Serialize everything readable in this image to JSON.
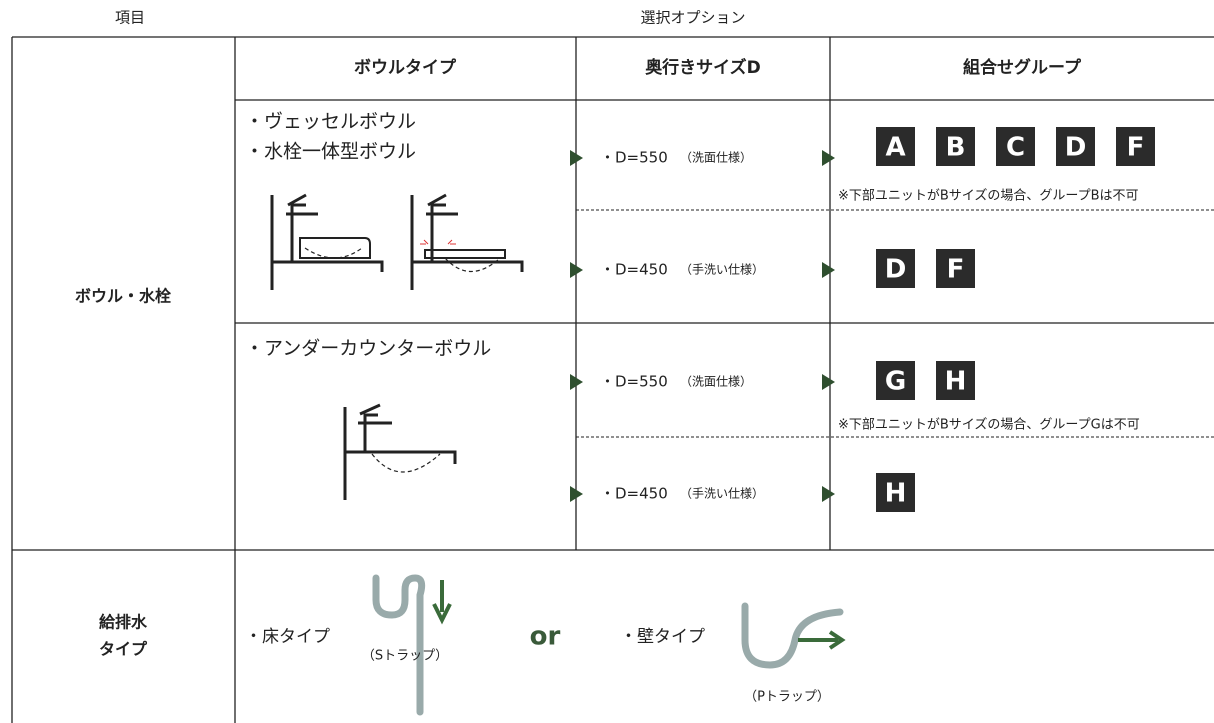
{
  "header": {
    "item": "項目",
    "options": "選択オプション"
  },
  "table": {
    "columns": [
      "ボウルタイプ",
      "奥行きサイズD",
      "組合せグループ"
    ],
    "bowl_row": {
      "label": "ボウル・水栓",
      "sections": [
        {
          "bowl_types": [
            "・ヴェッセルボウル",
            "・水栓一体型ボウル"
          ],
          "options": [
            {
              "depth": "・D=550",
              "use": "（洗面仕様）",
              "groups": [
                "A",
                "B",
                "C",
                "D",
                "F"
              ],
              "note": "※下部ユニットがBサイズの場合、グループBは不可"
            },
            {
              "depth": "・D=450",
              "use": "（手洗い仕様）",
              "groups": [
                "D",
                "F"
              ]
            }
          ]
        },
        {
          "bowl_types": [
            "・アンダーカウンターボウル"
          ],
          "options": [
            {
              "depth": "・D=550",
              "use": "（洗面仕様）",
              "groups": [
                "G",
                "H"
              ],
              "note": "※下部ユニットがBサイズの場合、グループGは不可"
            },
            {
              "depth": "・D=450",
              "use": "（手洗い仕様）",
              "groups": [
                "H"
              ]
            }
          ]
        }
      ]
    },
    "water_row": {
      "label": [
        "給排水",
        "タイプ"
      ],
      "floor": "・床タイプ",
      "floor_trap": "（Sトラップ）",
      "or": "or",
      "wall": "・壁タイプ",
      "wall_trap": "（Pトラップ）"
    }
  }
}
